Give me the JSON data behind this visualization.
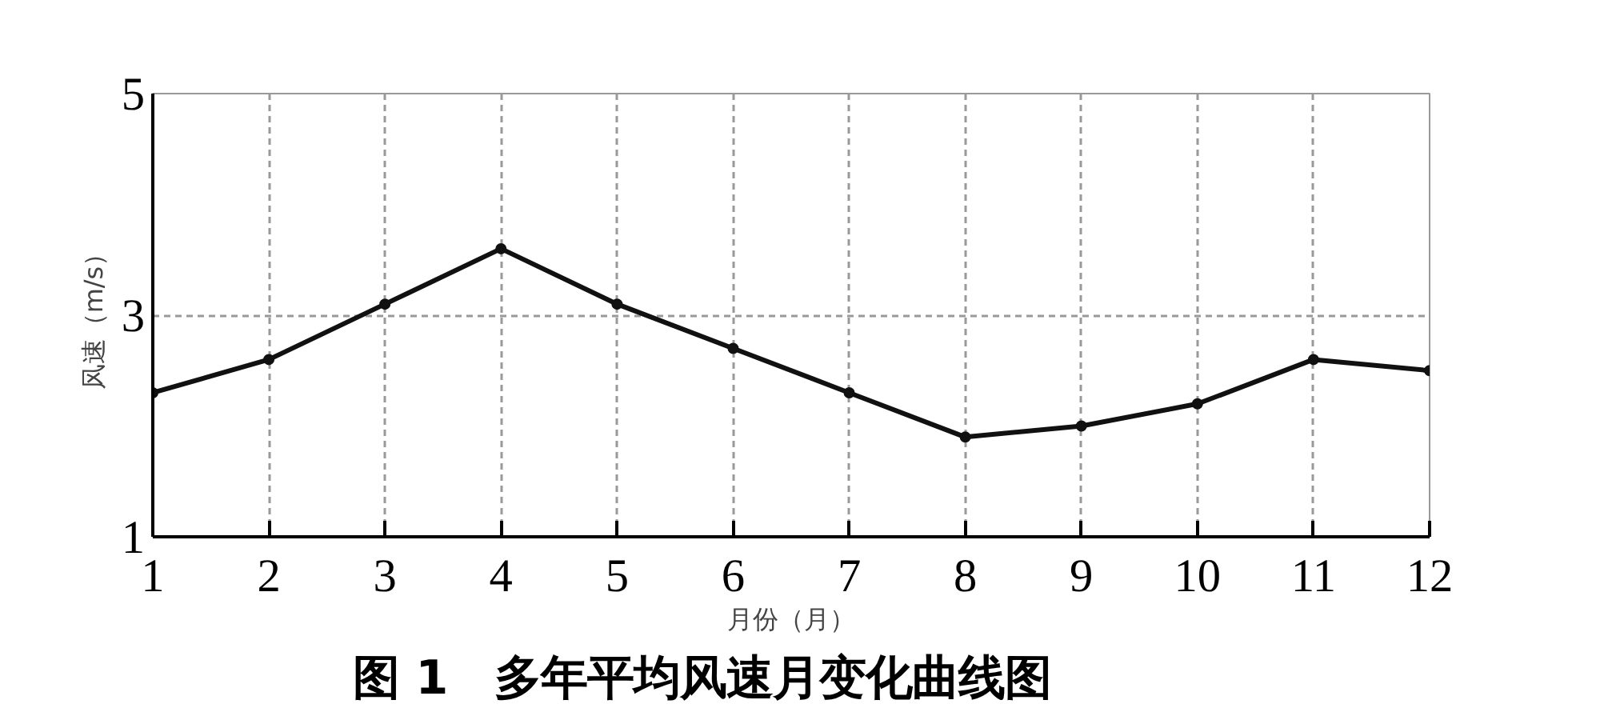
{
  "chart_data": {
    "type": "line",
    "title": "图 1　多年平均风速月变化曲线图",
    "xlabel": "月份（月）",
    "ylabel": "风速（m/s）",
    "x": [
      1,
      2,
      3,
      4,
      5,
      6,
      7,
      8,
      9,
      10,
      11,
      12
    ],
    "series": [
      {
        "color": "#111111",
        "values": [
          2.3,
          2.6,
          3.1,
          3.6,
          3.1,
          2.7,
          2.3,
          1.9,
          2.0,
          2.2,
          2.6,
          2.5
        ]
      }
    ],
    "xlim": [
      1,
      12
    ],
    "ylim": [
      1,
      5
    ],
    "xticks": [
      1,
      2,
      3,
      4,
      5,
      6,
      7,
      8,
      9,
      10,
      11,
      12
    ],
    "yticks": [
      1,
      3,
      5
    ],
    "grid": true,
    "marker": "circle",
    "line_style": "solid"
  }
}
